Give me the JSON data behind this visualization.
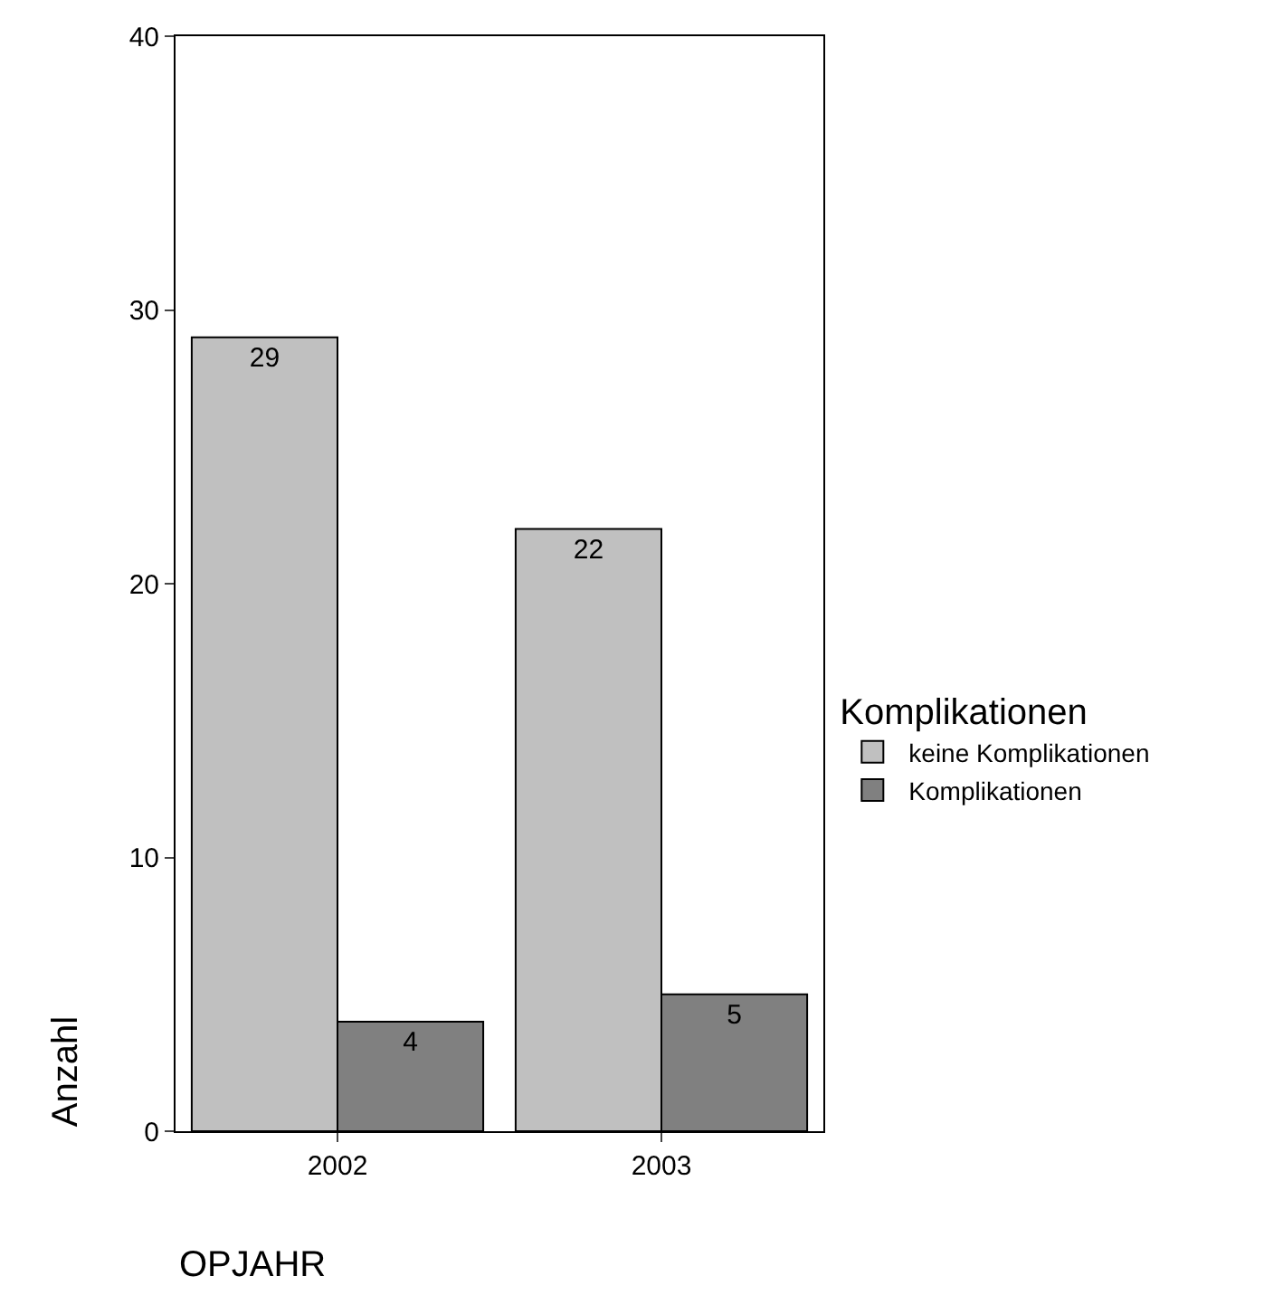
{
  "chart_data": {
    "type": "bar",
    "xlabel": "OPJAHR",
    "ylabel": "Anzahl",
    "legend_title": "Komplikationen",
    "categories": [
      "2002",
      "2003"
    ],
    "series": [
      {
        "name": "keine Komplikationen",
        "color": "#c0c0c0",
        "values": [
          29,
          22
        ]
      },
      {
        "name": "Komplikationen",
        "color": "#808080",
        "values": [
          4,
          5
        ]
      }
    ],
    "ylim": [
      0,
      40
    ],
    "yticks": [
      0,
      10,
      20,
      30,
      40
    ],
    "data_labels": true,
    "legend": "right"
  }
}
